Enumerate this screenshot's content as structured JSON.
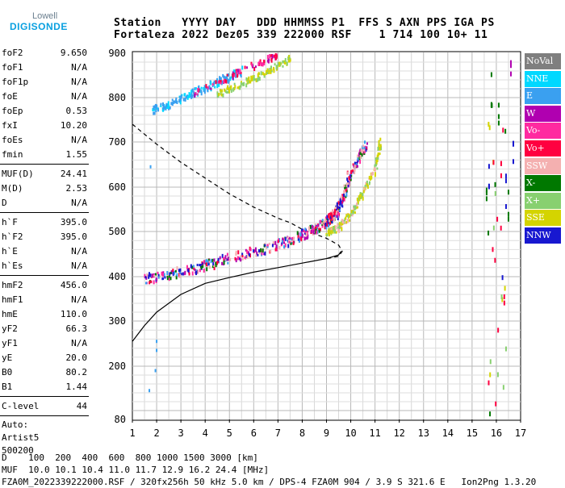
{
  "logo": {
    "line1": "Lowell",
    "line2": "DIGISONDE"
  },
  "header": {
    "line1": "Station   YYYY DAY   DDD HHMMSS P1  FFS S AXN PPS IGA PS",
    "line2": "Fortaleza 2022 Dez05 339 222000 RSF    1 714 100 10+ 11"
  },
  "parameters": {
    "group1": [
      {
        "label": "foF2",
        "value": "9.650"
      },
      {
        "label": "foF1",
        "value": "N/A"
      },
      {
        "label": "foF1p",
        "value": "N/A"
      },
      {
        "label": "foE",
        "value": "N/A"
      },
      {
        "label": "foEp",
        "value": "0.53"
      },
      {
        "label": "fxI",
        "value": "10.20"
      },
      {
        "label": "foEs",
        "value": "N/A"
      },
      {
        "label": "fmin",
        "value": "1.55"
      }
    ],
    "group2": [
      {
        "label": "MUF(D)",
        "value": "24.41"
      },
      {
        "label": "M(D)",
        "value": "2.53"
      },
      {
        "label": "D",
        "value": "N/A"
      }
    ],
    "group3": [
      {
        "label": "h`F",
        "value": "395.0"
      },
      {
        "label": "h`F2",
        "value": "395.0"
      },
      {
        "label": "h`E",
        "value": "N/A"
      },
      {
        "label": "h`Es",
        "value": "N/A"
      }
    ],
    "group4": [
      {
        "label": "hmF2",
        "value": "456.0"
      },
      {
        "label": "hmF1",
        "value": "N/A"
      },
      {
        "label": "hmE",
        "value": "110.0"
      },
      {
        "label": "yF2",
        "value": "66.3"
      },
      {
        "label": "yF1",
        "value": "N/A"
      },
      {
        "label": "yE",
        "value": "20.0"
      },
      {
        "label": "B0",
        "value": "80.2"
      },
      {
        "label": "B1",
        "value": "1.44"
      }
    ],
    "group5": [
      {
        "label": "C-level",
        "value": "44"
      }
    ],
    "auto_lines": [
      "Auto:",
      "Artist5",
      "500200"
    ]
  },
  "legend": [
    {
      "label": "NoVal",
      "color": "#7f7f7f"
    },
    {
      "label": "NNE",
      "color": "#00d8ff"
    },
    {
      "label": "E",
      "color": "#3aa0f0"
    },
    {
      "label": "W",
      "color": "#b000b0"
    },
    {
      "label": "Vo-",
      "color": "#ff2aa0"
    },
    {
      "label": "Vo+",
      "color": "#ff0040"
    },
    {
      "label": "SSW",
      "color": "#f4b0b0"
    },
    {
      "label": "X-",
      "color": "#007800"
    },
    {
      "label": "X+",
      "color": "#88d070"
    },
    {
      "label": "SSE",
      "color": "#d4d400"
    },
    {
      "label": "NNW",
      "color": "#1818d0"
    }
  ],
  "chart_data": {
    "type": "scatter",
    "x_ticks": [
      "1",
      "2",
      "3",
      "4",
      "5",
      "6",
      "7",
      "8",
      "9",
      "10",
      "11",
      "12",
      "13",
      "14",
      "15",
      "16",
      "17"
    ],
    "y_ticks": [
      "80",
      "200",
      "300",
      "400",
      "500",
      "600",
      "700",
      "800",
      "900"
    ],
    "xlim": [
      1,
      17
    ],
    "y_axis_scale": "nonlinear virtual height (80 to 900 km)",
    "grid": "on",
    "legend_position": "right",
    "trace_O_mode_F2": {
      "x": [
        1.5,
        2,
        3,
        4,
        5,
        6,
        7,
        7.5,
        8,
        8.5,
        9,
        9.4,
        9.7,
        10,
        10.3,
        10.6
      ],
      "y": [
        395,
        400,
        410,
        425,
        440,
        455,
        470,
        480,
        493,
        505,
        520,
        540,
        580,
        630,
        665,
        690
      ]
    },
    "trace_O_mode_F2_upper": {
      "x": [
        8.9,
        9.1,
        9.3,
        9.5,
        9.7,
        9.9
      ],
      "y": [
        520,
        530,
        545,
        560,
        585,
        630
      ]
    },
    "trace_X_mode_F2": {
      "x": [
        9.0,
        9.5,
        10.0,
        10.5,
        11.0,
        11.2
      ],
      "y": [
        495,
        510,
        540,
        590,
        640,
        700
      ]
    },
    "trace_multihop_E": {
      "x": [
        1.8,
        2.5,
        3.5,
        4.5,
        5.5
      ],
      "y": [
        770,
        785,
        810,
        835,
        860
      ]
    },
    "trace_multihop_SSE": {
      "x": [
        4.5,
        5.5,
        6.5,
        7.5
      ],
      "y": [
        808,
        830,
        855,
        890
      ]
    },
    "trace_multihop_red": {
      "x": [
        3.5,
        4.5,
        5.5,
        6.5,
        7.0
      ],
      "y": [
        810,
        835,
        860,
        885,
        895
      ]
    },
    "profile_solid": {
      "x": [
        1,
        1.5,
        2,
        3,
        4,
        5,
        6,
        7,
        8,
        8.5,
        9,
        9.5,
        9.6
      ],
      "y": [
        255,
        290,
        320,
        360,
        385,
        398,
        410,
        420,
        430,
        435,
        440,
        448,
        456
      ]
    },
    "profile_dashed": {
      "x": [
        1,
        2,
        3,
        4,
        5,
        6,
        7,
        7.5,
        8,
        8.5,
        9,
        9.5,
        9.65,
        9.5,
        9.0
      ],
      "y": [
        740,
        695,
        655,
        620,
        585,
        555,
        530,
        520,
        505,
        495,
        485,
        470,
        456,
        445,
        440
      ]
    },
    "right_markers": {
      "x": [
        15.6,
        15.7,
        15.8,
        16.1,
        16.2,
        16.4,
        16.5,
        16.6,
        16.7
      ],
      "y": [
        600,
        640,
        820,
        780,
        620,
        590,
        560,
        880,
        680
      ]
    }
  },
  "footer": {
    "line1": "D    100  200  400  600  800 1000 1500 3000 [km]",
    "line2": "MUF  10.0 10.1 10.4 11.0 11.7 12.9 16.2 24.4 [MHz]",
    "line3": "FZA0M_2022339222000.RSF / 320fx256h 50 kHz 5.0 km / DPS-4 FZA0M 904 / 3.9 S 321.6 E   Ion2Png 1.3.20"
  }
}
